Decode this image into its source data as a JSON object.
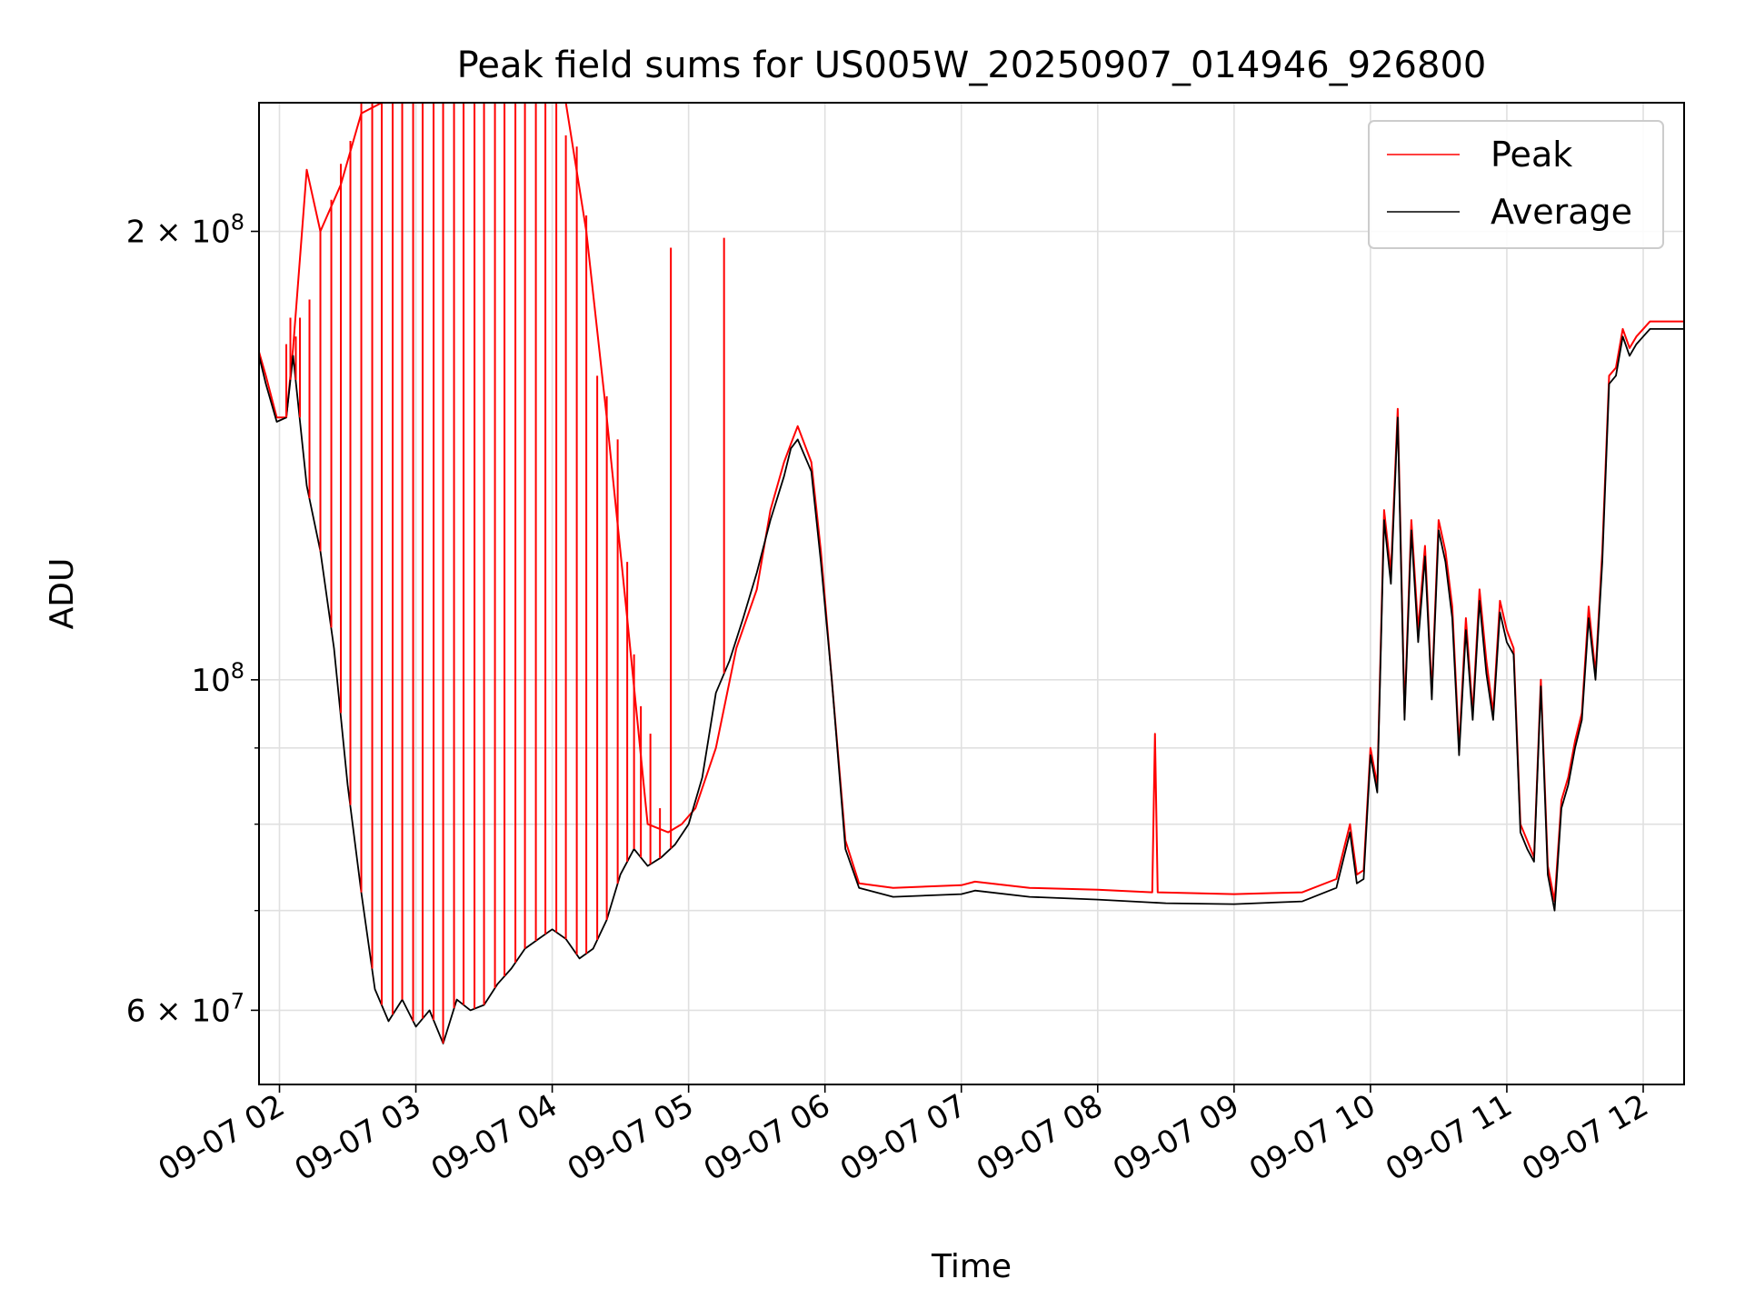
{
  "chart_data": {
    "type": "line",
    "title": "Peak field sums for US005W_20250907_014946_926800",
    "xlabel": "Time",
    "ylabel": "ADU",
    "x_tick_labels": [
      "09-07 02",
      "09-07 03",
      "09-07 04",
      "09-07 05",
      "09-07 06",
      "09-07 07",
      "09-07 08",
      "09-07 09",
      "09-07 10",
      "09-07 11",
      "09-07 12"
    ],
    "x_ticks_hours": [
      2,
      3,
      4,
      5,
      6,
      7,
      8,
      9,
      10,
      11,
      12
    ],
    "xlim_hours": [
      1.85,
      12.3
    ],
    "y_scale": "log",
    "ylim": [
      53500000,
      244000000
    ],
    "y_major_ticks": [
      {
        "value": 60000000,
        "mantissa": "6",
        "exponent": "7"
      },
      {
        "value": 100000000,
        "mantissa": "",
        "exponent": "8"
      },
      {
        "value": 200000000,
        "mantissa": "2",
        "exponent": "8"
      }
    ],
    "y_minor_ticks": [
      70000000,
      80000000,
      90000000
    ],
    "grid": true,
    "legend_position": "upper right",
    "series": [
      {
        "name": "Peak",
        "color": "#ff0000",
        "x_hours": [
          1.85,
          1.9,
          1.98,
          2.05,
          2.1,
          2.2,
          2.3,
          2.45,
          2.6,
          2.75,
          2.85,
          2.95,
          3.05,
          3.15,
          3.3,
          3.45,
          3.6,
          3.75,
          3.9,
          4.0,
          4.1,
          4.25,
          4.4,
          4.55,
          4.7,
          4.85,
          4.95,
          5.05,
          5.2,
          5.35,
          5.5,
          5.6,
          5.7,
          5.75,
          5.8,
          5.9,
          5.97,
          6.05,
          6.15,
          6.25,
          6.5,
          7.0,
          7.1,
          7.5,
          8.0,
          8.4,
          8.42,
          8.44,
          9.0,
          9.5,
          9.75,
          9.85,
          9.9,
          9.95,
          10.0,
          10.05,
          10.1,
          10.15,
          10.2,
          10.25,
          10.3,
          10.35,
          10.4,
          10.45,
          10.5,
          10.55,
          10.6,
          10.65,
          10.7,
          10.75,
          10.8,
          10.85,
          10.9,
          10.95,
          11.0,
          11.05,
          11.1,
          11.15,
          11.2,
          11.25,
          11.3,
          11.35,
          11.4,
          11.45,
          11.5,
          11.55,
          11.6,
          11.65,
          11.7,
          11.75,
          11.8,
          11.85,
          11.9,
          11.95,
          12.0,
          12.05,
          12.1,
          12.15,
          12.2,
          12.25,
          12.3
        ],
        "values": [
          166000000,
          160000000,
          150000000,
          150000000,
          167000000,
          220000000,
          200000000,
          215000000,
          240000000,
          244000000,
          244000000,
          244000000,
          244000000,
          244000000,
          244000000,
          244000000,
          244000000,
          244000000,
          244000000,
          244000000,
          244000000,
          200000000,
          150000000,
          110000000,
          80000000,
          79000000,
          80000000,
          82000000,
          90000000,
          105000000,
          115000000,
          130000000,
          140000000,
          144000000,
          148000000,
          140000000,
          122000000,
          100000000,
          78000000,
          73000000,
          72500000,
          72800000,
          73200000,
          72500000,
          72300000,
          72000000,
          92000000,
          72000000,
          71800000,
          72000000,
          73500000,
          80000000,
          74000000,
          74500000,
          90000000,
          85000000,
          130000000,
          118000000,
          152000000,
          95000000,
          128000000,
          108000000,
          123000000,
          98000000,
          128000000,
          122000000,
          112000000,
          90000000,
          110000000,
          95000000,
          115000000,
          103000000,
          95000000,
          113000000,
          108000000,
          105000000,
          80000000,
          78000000,
          76000000,
          100000000,
          75000000,
          71000000,
          83000000,
          86000000,
          91000000,
          95000000,
          112000000,
          101000000,
          122000000,
          160000000,
          162000000,
          172000000,
          167000000,
          170000000,
          172000000,
          174000000,
          174000000,
          174000000,
          174000000,
          174000000,
          174000000
        ]
      },
      {
        "name": "Average",
        "color": "#000000",
        "x_hours": [
          1.85,
          1.9,
          1.98,
          2.05,
          2.1,
          2.2,
          2.3,
          2.4,
          2.5,
          2.6,
          2.7,
          2.8,
          2.9,
          3.0,
          3.1,
          3.2,
          3.3,
          3.4,
          3.5,
          3.6,
          3.7,
          3.8,
          3.9,
          4.0,
          4.1,
          4.2,
          4.3,
          4.4,
          4.5,
          4.6,
          4.7,
          4.8,
          4.9,
          5.0,
          5.1,
          5.2,
          5.3,
          5.4,
          5.5,
          5.6,
          5.7,
          5.75,
          5.8,
          5.9,
          5.97,
          6.05,
          6.15,
          6.25,
          6.5,
          7.0,
          7.1,
          7.5,
          8.0,
          8.5,
          9.0,
          9.5,
          9.75,
          9.85,
          9.9,
          9.95,
          10.0,
          10.05,
          10.1,
          10.15,
          10.2,
          10.25,
          10.3,
          10.35,
          10.4,
          10.45,
          10.5,
          10.55,
          10.6,
          10.65,
          10.7,
          10.75,
          10.8,
          10.85,
          10.9,
          10.95,
          11.0,
          11.05,
          11.1,
          11.15,
          11.2,
          11.25,
          11.3,
          11.35,
          11.4,
          11.45,
          11.5,
          11.55,
          11.6,
          11.65,
          11.7,
          11.75,
          11.8,
          11.85,
          11.9,
          11.95,
          12.0,
          12.05,
          12.1,
          12.15,
          12.2,
          12.25,
          12.3
        ],
        "values": [
          165000000,
          158000000,
          149000000,
          150000000,
          165000000,
          135000000,
          122000000,
          105000000,
          85000000,
          72000000,
          62000000,
          59000000,
          61000000,
          58500000,
          60000000,
          57000000,
          61000000,
          60000000,
          60500000,
          62500000,
          64000000,
          66000000,
          67000000,
          68000000,
          67000000,
          65000000,
          66000000,
          69000000,
          74000000,
          77000000,
          75000000,
          76000000,
          77500000,
          80000000,
          86000000,
          98000000,
          103000000,
          110000000,
          118000000,
          128000000,
          137000000,
          143000000,
          145000000,
          138000000,
          120000000,
          100000000,
          77000000,
          72500000,
          71500000,
          71800000,
          72200000,
          71500000,
          71200000,
          70800000,
          70700000,
          71000000,
          72500000,
          79000000,
          73000000,
          73500000,
          89000000,
          84000000,
          128000000,
          116000000,
          150000000,
          94000000,
          126000000,
          106000000,
          121000000,
          97000000,
          126000000,
          120000000,
          110000000,
          89000000,
          108000000,
          94000000,
          113000000,
          101000000,
          94000000,
          111000000,
          106000000,
          104000000,
          79000000,
          77000000,
          75500000,
          99000000,
          74000000,
          70000000,
          82000000,
          85000000,
          90000000,
          94000000,
          110000000,
          100000000,
          120000000,
          158000000,
          160000000,
          170000000,
          165000000,
          168000000,
          170000000,
          172000000,
          172000000,
          172000000,
          172000000,
          172000000,
          172000000
        ]
      }
    ],
    "peak_spike_hours": [
      2.05,
      2.08,
      2.12,
      2.15,
      2.22,
      2.3,
      2.38,
      2.45,
      2.52,
      2.6,
      2.68,
      2.75,
      2.83,
      2.9,
      2.98,
      3.05,
      3.13,
      3.2,
      3.28,
      3.35,
      3.43,
      3.5,
      3.58,
      3.65,
      3.73,
      3.8,
      3.88,
      3.95,
      4.03,
      4.1,
      4.18,
      4.25,
      4.33,
      4.4,
      4.48,
      4.55,
      4.6,
      4.65,
      4.72,
      4.79,
      4.87,
      5.26
    ],
    "peak_spike_values": [
      168000000,
      175000000,
      170000000,
      175000000,
      180000000,
      200000000,
      210000000,
      222000000,
      230000000,
      244000000,
      244000000,
      244000000,
      244000000,
      244000000,
      244000000,
      244000000,
      244000000,
      244000000,
      244000000,
      244000000,
      244000000,
      244000000,
      244000000,
      244000000,
      244000000,
      244000000,
      244000000,
      244000000,
      244000000,
      232000000,
      228000000,
      205000000,
      160000000,
      155000000,
      145000000,
      120000000,
      104000000,
      96000000,
      92000000,
      82000000,
      195000000,
      198000000
    ]
  },
  "legend": {
    "peak_label": "Peak",
    "average_label": "Average"
  }
}
